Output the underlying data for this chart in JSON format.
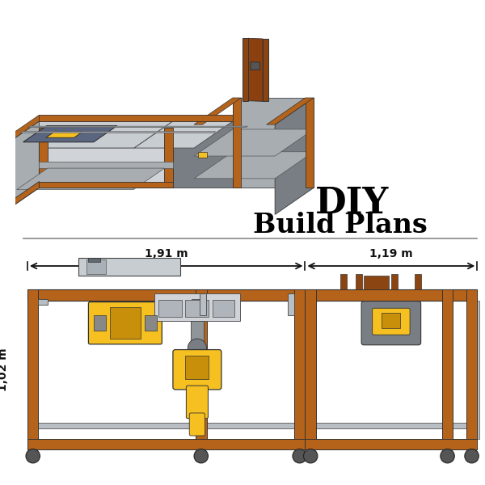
{
  "bg_color": "#ffffff",
  "wood_color": "#b5631a",
  "wood_dark": "#8B4513",
  "gray_top": "#c8cdd2",
  "gray_mid": "#a8adb2",
  "gray_dark": "#787e84",
  "gray_front": "#d0d4d8",
  "steel_color": "#b8bec4",
  "yellow_tool": "#f5c020",
  "dark_yellow": "#c8900a",
  "saw_blue": "#5a6580",
  "dim_color": "#111111",
  "text_DIY": "DIY",
  "text_build_plans": "Build Plans",
  "dim_191": "1,91 m",
  "dim_119": "1,19 m",
  "dim_102": "1,02 m"
}
